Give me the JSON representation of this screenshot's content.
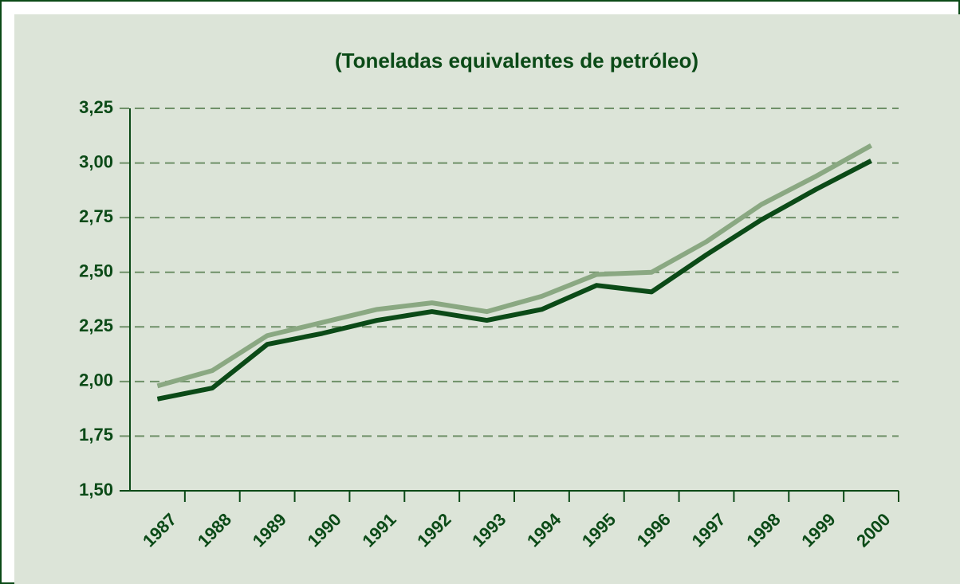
{
  "chart_data": {
    "type": "line",
    "title": "(Toneladas equivalentes de petróleo)",
    "categories": [
      "1987",
      "1988",
      "1989",
      "1990",
      "1991",
      "1992",
      "1993",
      "1994",
      "1995",
      "1996",
      "1997",
      "1998",
      "1999",
      "2000"
    ],
    "series": [
      {
        "color": "#8aa882",
        "values": [
          1.98,
          2.05,
          2.21,
          2.27,
          2.33,
          2.36,
          2.32,
          2.39,
          2.49,
          2.5,
          2.64,
          2.81,
          2.94,
          3.08
        ]
      },
      {
        "color": "#0b4a17",
        "values": [
          1.92,
          1.97,
          2.17,
          2.22,
          2.28,
          2.32,
          2.28,
          2.33,
          2.44,
          2.41,
          2.58,
          2.74,
          2.88,
          3.01
        ]
      }
    ],
    "ylim": [
      1.5,
      3.25
    ],
    "yticks": [
      {
        "value": 1.5,
        "label": "1,50"
      },
      {
        "value": 1.75,
        "label": "1,75"
      },
      {
        "value": 2.0,
        "label": "2,00"
      },
      {
        "value": 2.25,
        "label": "2,25"
      },
      {
        "value": 2.5,
        "label": "2,50"
      },
      {
        "value": 2.75,
        "label": "2,75"
      },
      {
        "value": 3.0,
        "label": "3,00"
      },
      {
        "value": 3.25,
        "label": "3,25"
      }
    ],
    "grid": true
  }
}
